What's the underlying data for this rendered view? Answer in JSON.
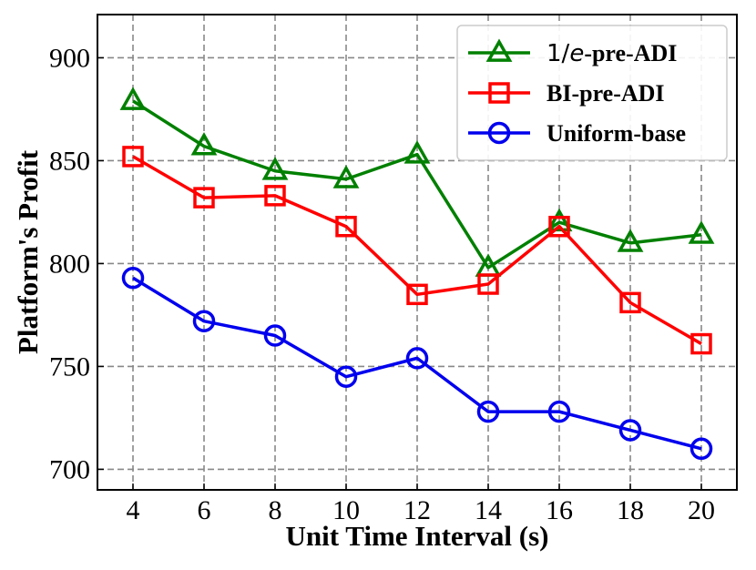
{
  "chart_data": {
    "type": "line",
    "title": "",
    "xlabel": "Unit Time Interval (s)",
    "ylabel": "Platform's Profit",
    "x": [
      4,
      6,
      8,
      10,
      12,
      14,
      16,
      18,
      20
    ],
    "xticks": [
      4,
      6,
      8,
      10,
      12,
      14,
      16,
      18,
      20
    ],
    "yticks": [
      700,
      750,
      800,
      850,
      900
    ],
    "xlim": [
      3,
      21
    ],
    "ylim": [
      690,
      921
    ],
    "grid": true,
    "legend_position": "top-right",
    "series": [
      {
        "name_prefix": "1/",
        "name_italic": "e",
        "name_suffix": "-pre-ADI",
        "color": "#008000",
        "marker": "triangle",
        "values": [
          879,
          857,
          845,
          841,
          853,
          798,
          820,
          810,
          814
        ]
      },
      {
        "name": "BI-pre-ADI",
        "color": "#ff0000",
        "marker": "square",
        "values": [
          852,
          832,
          833,
          818,
          785,
          790,
          818,
          781,
          761
        ]
      },
      {
        "name": "Uniform-base",
        "color": "#0000ee",
        "marker": "circle",
        "values": [
          793,
          772,
          765,
          745,
          754,
          728,
          728,
          719,
          710
        ]
      }
    ]
  }
}
